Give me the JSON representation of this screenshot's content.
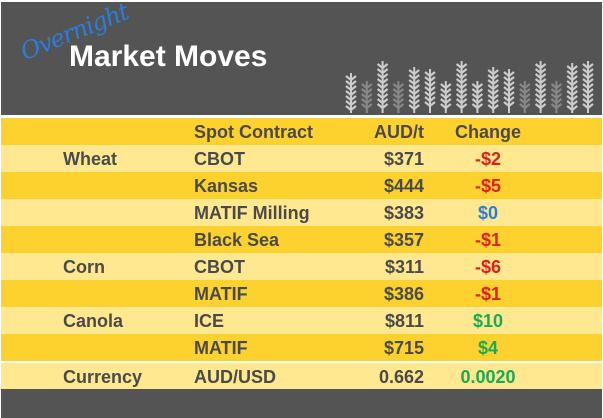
{
  "header": {
    "script_word": "Overnight",
    "title": "Market Moves",
    "icon": "wheat-stalks-icon"
  },
  "columns": [
    "",
    "Spot Contract",
    "AUD/t",
    "Change"
  ],
  "rows": [
    {
      "category": "Wheat",
      "contract": "CBOT",
      "price": "$371",
      "change": "-$2",
      "dir": "down"
    },
    {
      "category": "",
      "contract": "Kansas",
      "price": "$444",
      "change": "-$5",
      "dir": "down"
    },
    {
      "category": "",
      "contract": "MATIF Milling",
      "price": "$383",
      "change": "$0",
      "dir": "flat"
    },
    {
      "category": "",
      "contract": "Black Sea",
      "price": "$357",
      "change": "-$1",
      "dir": "down"
    },
    {
      "category": "Corn",
      "contract": "CBOT",
      "price": "$311",
      "change": "-$6",
      "dir": "down"
    },
    {
      "category": "",
      "contract": "MATIF",
      "price": "$386",
      "change": "-$1",
      "dir": "down"
    },
    {
      "category": "Canola",
      "contract": "ICE",
      "price": "$811",
      "change": "$10",
      "dir": "up"
    },
    {
      "category": "",
      "contract": "MATIF",
      "price": "$715",
      "change": "$4",
      "dir": "up"
    },
    {
      "category": "Currency",
      "contract": "AUD/USD",
      "price": "0.662",
      "change": "0.0020",
      "dir": "up"
    }
  ],
  "colors": {
    "down": "#e0201c",
    "flat": "#2a7de1",
    "up": "#1aaa55",
    "dark_row": "#fdd22f",
    "light_row": "#ffe88f",
    "header_bg": "#545454"
  }
}
